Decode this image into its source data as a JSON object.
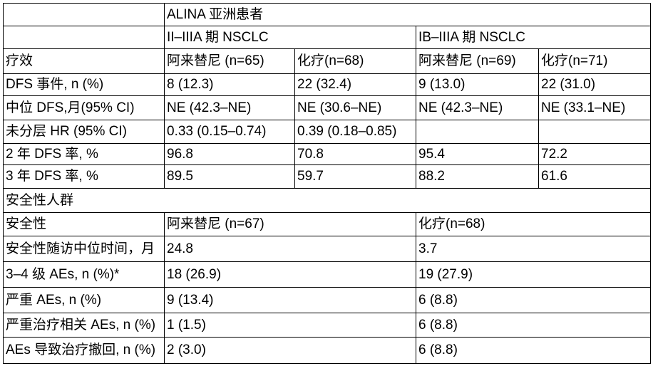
{
  "colors": {
    "background": "#ffffff",
    "border": "#000000",
    "text": "#000000"
  },
  "table": {
    "title_cell": "ALINA 亚洲患者",
    "rows": [
      {
        "name": "header-study",
        "height": 32,
        "cells": [
          {
            "text": "",
            "colspan": 1
          },
          {
            "text": "ALINA 亚洲患者",
            "colspan": 4
          }
        ]
      },
      {
        "name": "header-stage",
        "height": 32,
        "cells": [
          {
            "text": "",
            "colspan": 1
          },
          {
            "text": "II–IIIA 期 NSCLC",
            "colspan": 2
          },
          {
            "text": "IB–IIIA 期 NSCLC",
            "colspan": 2
          }
        ]
      },
      {
        "name": "header-efficacy-arms",
        "height": 35,
        "cells": [
          {
            "text": "疗效"
          },
          {
            "text": "阿来替尼 (n=65)"
          },
          {
            "text": "化疗(n=68)"
          },
          {
            "text": "阿来替尼 (n=69)"
          },
          {
            "text": "化疗(n=71)"
          }
        ]
      },
      {
        "name": "dfs-events",
        "height": 31,
        "cells": [
          {
            "text": "DFS 事件, n (%)"
          },
          {
            "text": "8 (12.3)"
          },
          {
            "text": "22 (32.4)"
          },
          {
            "text": "9 (13.0)"
          },
          {
            "text": "22 (31.0)"
          }
        ]
      },
      {
        "name": "median-dfs",
        "height": 34,
        "cells": [
          {
            "text": "中位 DFS,月(95% CI)"
          },
          {
            "text": "NE (42.3–NE)"
          },
          {
            "text": "NE (30.6–NE)"
          },
          {
            "text": "NE (42.3–NE)"
          },
          {
            "text": "NE (33.1–NE)"
          }
        ]
      },
      {
        "name": "unstratified-hr",
        "height": 33,
        "cells": [
          {
            "text": "未分层 HR (95% CI)"
          },
          {
            "text": "0.33 (0.15–0.74)"
          },
          {
            "text": "0.39 (0.18–0.85)"
          },
          {
            "text": ""
          },
          {
            "text": ""
          }
        ]
      },
      {
        "name": "dfs-rate-2yr",
        "height": 30,
        "cells": [
          {
            "text": "2 年 DFS 率, %"
          },
          {
            "text": "96.8"
          },
          {
            "text": "70.8"
          },
          {
            "text": "95.4"
          },
          {
            "text": "72.2"
          }
        ]
      },
      {
        "name": "dfs-rate-3yr",
        "height": 33,
        "cells": [
          {
            "text": "3 年 DFS 率, %"
          },
          {
            "text": "89.5"
          },
          {
            "text": "59.7"
          },
          {
            "text": "88.2"
          },
          {
            "text": "61.6"
          }
        ]
      },
      {
        "name": "header-safety-population",
        "height": 34,
        "cells": [
          {
            "text": "安全性人群",
            "colspan": 5
          }
        ]
      },
      {
        "name": "header-safety-arms",
        "height": 33,
        "cells": [
          {
            "text": "安全性"
          },
          {
            "text": "阿来替尼 (n=67)",
            "colspan": 2
          },
          {
            "text": "化疗(n=68)",
            "colspan": 2
          }
        ]
      },
      {
        "name": "safety-followup-median",
        "height": 36,
        "cells": [
          {
            "text": "安全性随访中位时间，月"
          },
          {
            "text": "24.8",
            "colspan": 2
          },
          {
            "text": "3.7",
            "colspan": 2
          }
        ]
      },
      {
        "name": "grade-3-4-aes",
        "height": 36,
        "cells": [
          {
            "text": "3–4 级 AEs, n (%)*"
          },
          {
            "text": "18 (26.9)",
            "colspan": 2
          },
          {
            "text": "19 (27.9)",
            "colspan": 2
          }
        ]
      },
      {
        "name": "serious-aes",
        "height": 36,
        "cells": [
          {
            "text": "严重 AEs, n (%)"
          },
          {
            "text": "9 (13.4)",
            "colspan": 2
          },
          {
            "text": "6 (8.8)",
            "colspan": 2
          }
        ]
      },
      {
        "name": "serious-treatment-related-aes",
        "height": 34,
        "cells": [
          {
            "text": "严重治疗相关 AEs, n (%)"
          },
          {
            "text": "1 (1.5)",
            "colspan": 2
          },
          {
            "text": "6 (8.8)",
            "colspan": 2
          }
        ]
      },
      {
        "name": "aes-leading-to-withdrawal",
        "height": 37,
        "cells": [
          {
            "text": "AEs 导致治疗撤回, n (%)"
          },
          {
            "text": "2 (3.0)",
            "colspan": 2
          },
          {
            "text": "6 (8.8)",
            "colspan": 2
          }
        ]
      }
    ]
  }
}
